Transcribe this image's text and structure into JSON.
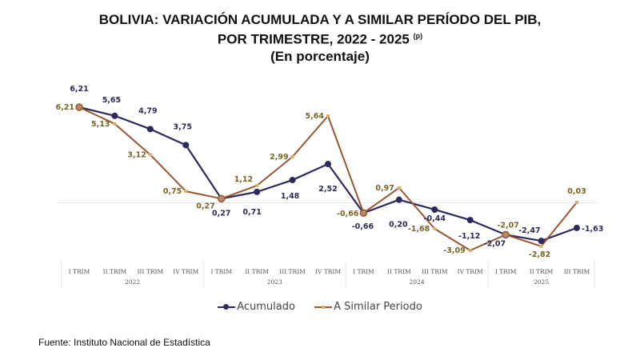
{
  "title": {
    "line1": "BOLIVIA: VARIACIÓN ACUMULADA Y A SIMILAR PERÍODO DEL PIB,",
    "line2": "POR TRIMESTRE, 2022 - 2025",
    "line2_sup": "(p)",
    "line3": "(En porcentaje)"
  },
  "source": "Fuente: Instituto Nacional de Estadística",
  "colors": {
    "acumulado": "#2a2a5e",
    "acumulado_label": "#2b2b55",
    "similar": "#9a5630",
    "similar_marker": "#d9ae6a",
    "similar_label": "#7a6526"
  },
  "chart_data": {
    "type": "line",
    "title": "BOLIVIA: VARIACIÓN ACUMULADA Y A SIMILAR PERÍODO DEL PIB, POR TRIMESTRE, 2022 - 2025 (p) (En porcentaje)",
    "xlabel": "",
    "ylabel": "",
    "ylim": [
      -3.09,
      6.21
    ],
    "grid": "zero-line only",
    "legend_position": "bottom",
    "categories": [
      "I TRIM",
      "II TRIM",
      "III TRIM",
      "IV TRIM",
      "I TRIM",
      "II TRIM",
      "III TRIM",
      "IV TRIM",
      "I TRIM",
      "II TRIM",
      "III TRIM",
      "IV TRIM",
      "I TRIM",
      "II TRIM",
      "III TRIM"
    ],
    "groups": [
      {
        "label": "2022",
        "count": 4
      },
      {
        "label": "2023",
        "count": 4
      },
      {
        "label": "2024",
        "count": 4
      },
      {
        "label": "2025",
        "count": 3
      }
    ],
    "series": [
      {
        "name": "Acumulado",
        "values": [
          6.21,
          5.65,
          4.79,
          3.75,
          0.27,
          0.71,
          1.48,
          2.52,
          -0.66,
          0.2,
          -0.44,
          -1.12,
          -2.07,
          -2.47,
          -1.63
        ],
        "labels": [
          "6,21",
          "5,65",
          "4,79",
          "3,75",
          "0,27",
          "0,71",
          "1,48",
          "2,52",
          "-0,66",
          "0,20",
          "-0,44",
          "-1,12",
          "-2,07",
          "-2,47",
          "-1,63"
        ]
      },
      {
        "name": "A Similar Periodo",
        "values": [
          6.21,
          5.13,
          3.12,
          0.75,
          0.27,
          1.12,
          2.99,
          5.64,
          -0.66,
          0.97,
          -1.68,
          -3.09,
          -2.07,
          -2.82,
          0.03
        ],
        "labels": [
          "6,21",
          "5,13",
          "3,12",
          "0,75",
          "0,27",
          "1,12",
          "2,99",
          "5,64",
          "-0,66",
          "0,97",
          "-1,68",
          "-3,09",
          "-2,07",
          "-2,82",
          "0,03"
        ]
      }
    ]
  }
}
